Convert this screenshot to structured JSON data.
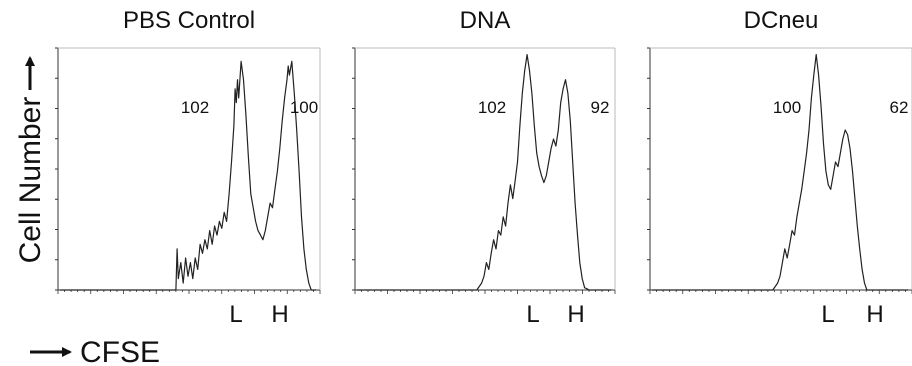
{
  "figure": {
    "ylabel": "Cell Number",
    "xlabel": "CFSE"
  },
  "chart_data": [
    {
      "type": "line",
      "title": "PBS Control",
      "peaks": [
        {
          "label": "L",
          "value": "102"
        },
        {
          "label": "H",
          "value": "100"
        }
      ],
      "series": [
        {
          "values": [
            [
              0,
              0
            ],
            [
              2,
              0
            ],
            [
              4,
              0
            ],
            [
              6,
              0
            ],
            [
              8,
              0
            ],
            [
              10,
              0
            ],
            [
              12,
              0
            ],
            [
              14,
              0
            ],
            [
              16,
              0
            ],
            [
              18,
              0
            ],
            [
              20,
              0
            ],
            [
              22,
              0
            ],
            [
              24,
              0
            ],
            [
              26,
              0
            ],
            [
              28,
              0
            ],
            [
              30,
              0
            ],
            [
              32,
              0
            ],
            [
              34,
              0
            ],
            [
              36,
              0
            ],
            [
              38,
              0
            ],
            [
              40,
              0
            ],
            [
              42,
              0
            ],
            [
              44,
              0
            ],
            [
              46,
              0
            ],
            [
              48,
              0
            ],
            [
              48.5,
              18
            ],
            [
              49,
              5
            ],
            [
              50,
              12
            ],
            [
              51,
              3
            ],
            [
              52,
              14
            ],
            [
              53,
              6
            ],
            [
              54,
              12
            ],
            [
              55,
              5
            ],
            [
              56,
              14
            ],
            [
              57,
              9
            ],
            [
              58,
              20
            ],
            [
              59,
              16
            ],
            [
              60,
              22
            ],
            [
              61,
              18
            ],
            [
              62,
              26
            ],
            [
              63,
              20
            ],
            [
              64,
              28
            ],
            [
              65,
              24
            ],
            [
              66,
              30
            ],
            [
              67,
              27
            ],
            [
              68,
              34
            ],
            [
              69,
              30
            ],
            [
              70,
              42
            ],
            [
              71,
              56
            ],
            [
              72,
              72
            ],
            [
              72.5,
              88
            ],
            [
              73,
              82
            ],
            [
              73.5,
              92
            ],
            [
              74,
              84
            ],
            [
              75,
              100
            ],
            [
              76,
              92
            ],
            [
              77,
              76
            ],
            [
              78,
              58
            ],
            [
              79,
              42
            ],
            [
              80,
              36
            ],
            [
              81,
              30
            ],
            [
              82,
              26
            ],
            [
              83,
              24
            ],
            [
              84,
              22
            ],
            [
              85,
              26
            ],
            [
              86,
              32
            ],
            [
              87,
              38
            ],
            [
              88,
              36
            ],
            [
              89,
              44
            ],
            [
              90,
              52
            ],
            [
              91,
              62
            ],
            [
              92,
              74
            ],
            [
              93,
              84
            ],
            [
              94,
              92
            ],
            [
              94.5,
              98
            ],
            [
              95,
              94
            ],
            [
              96,
              100
            ],
            [
              97,
              86
            ],
            [
              98,
              70
            ],
            [
              99,
              52
            ],
            [
              100,
              32
            ],
            [
              101,
              18
            ],
            [
              102,
              9
            ],
            [
              103,
              3
            ],
            [
              104,
              0
            ],
            [
              106,
              0
            ]
          ]
        }
      ]
    },
    {
      "type": "line",
      "title": "DNA",
      "peaks": [
        {
          "label": "L",
          "value": "102"
        },
        {
          "label": "H",
          "value": "92"
        }
      ],
      "series": [
        {
          "values": [
            [
              0,
              0
            ],
            [
              2,
              0
            ],
            [
              4,
              0
            ],
            [
              6,
              0
            ],
            [
              8,
              0
            ],
            [
              10,
              0
            ],
            [
              12,
              0
            ],
            [
              14,
              0
            ],
            [
              16,
              0
            ],
            [
              18,
              0
            ],
            [
              20,
              0
            ],
            [
              22,
              0
            ],
            [
              24,
              0
            ],
            [
              26,
              0
            ],
            [
              28,
              0
            ],
            [
              30,
              0
            ],
            [
              32,
              0
            ],
            [
              34,
              0
            ],
            [
              36,
              0
            ],
            [
              38,
              0
            ],
            [
              40,
              0
            ],
            [
              42,
              0
            ],
            [
              44,
              0
            ],
            [
              46,
              0
            ],
            [
              48,
              0
            ],
            [
              50,
              0
            ],
            [
              52,
              3
            ],
            [
              53,
              6
            ],
            [
              54,
              12
            ],
            [
              55,
              9
            ],
            [
              56,
              16
            ],
            [
              57,
              22
            ],
            [
              58,
              18
            ],
            [
              59,
              26
            ],
            [
              60,
              24
            ],
            [
              61,
              32
            ],
            [
              62,
              28
            ],
            [
              63,
              38
            ],
            [
              64,
              46
            ],
            [
              65,
              40
            ],
            [
              66,
              48
            ],
            [
              67,
              56
            ],
            [
              68,
              72
            ],
            [
              69,
              86
            ],
            [
              70,
              96
            ],
            [
              71,
              103
            ],
            [
              72,
              96
            ],
            [
              73,
              86
            ],
            [
              74,
              72
            ],
            [
              75,
              60
            ],
            [
              76,
              54
            ],
            [
              77,
              50
            ],
            [
              78,
              47
            ],
            [
              79,
              50
            ],
            [
              80,
              56
            ],
            [
              81,
              62
            ],
            [
              82,
              66
            ],
            [
              83,
              63
            ],
            [
              84,
              70
            ],
            [
              85,
              82
            ],
            [
              86,
              88
            ],
            [
              87,
              92
            ],
            [
              88,
              86
            ],
            [
              89,
              74
            ],
            [
              90,
              56
            ],
            [
              91,
              38
            ],
            [
              92,
              24
            ],
            [
              93,
              12
            ],
            [
              94,
              5
            ],
            [
              95,
              1
            ],
            [
              97,
              0
            ],
            [
              99,
              0
            ],
            [
              101,
              0
            ],
            [
              103,
              0
            ],
            [
              106,
              0
            ]
          ]
        }
      ]
    },
    {
      "type": "line",
      "title": "DCneu",
      "peaks": [
        {
          "label": "L",
          "value": "100"
        },
        {
          "label": "H",
          "value": "62"
        }
      ],
      "series": [
        {
          "values": [
            [
              0,
              0
            ],
            [
              2,
              0
            ],
            [
              4,
              0
            ],
            [
              6,
              0
            ],
            [
              8,
              0
            ],
            [
              10,
              0
            ],
            [
              12,
              0
            ],
            [
              14,
              0
            ],
            [
              16,
              0
            ],
            [
              18,
              0
            ],
            [
              20,
              0
            ],
            [
              22,
              0
            ],
            [
              24,
              0
            ],
            [
              26,
              0
            ],
            [
              28,
              0
            ],
            [
              30,
              0
            ],
            [
              32,
              0
            ],
            [
              34,
              0
            ],
            [
              36,
              0
            ],
            [
              38,
              0
            ],
            [
              40,
              0
            ],
            [
              42,
              0
            ],
            [
              44,
              0
            ],
            [
              46,
              0
            ],
            [
              48,
              0
            ],
            [
              50,
              0
            ],
            [
              52,
              3
            ],
            [
              53,
              6
            ],
            [
              54,
              12
            ],
            [
              55,
              18
            ],
            [
              56,
              14
            ],
            [
              57,
              20
            ],
            [
              58,
              26
            ],
            [
              59,
              24
            ],
            [
              60,
              32
            ],
            [
              61,
              38
            ],
            [
              62,
              44
            ],
            [
              63,
              52
            ],
            [
              64,
              60
            ],
            [
              65,
              70
            ],
            [
              66,
              84
            ],
            [
              67,
              94
            ],
            [
              68,
              103
            ],
            [
              69,
              94
            ],
            [
              70,
              80
            ],
            [
              71,
              64
            ],
            [
              72,
              52
            ],
            [
              73,
              46
            ],
            [
              74,
              44
            ],
            [
              75,
              50
            ],
            [
              76,
              56
            ],
            [
              77,
              54
            ],
            [
              78,
              60
            ],
            [
              79,
              66
            ],
            [
              80,
              70
            ],
            [
              81,
              68
            ],
            [
              82,
              62
            ],
            [
              83,
              52
            ],
            [
              84,
              40
            ],
            [
              85,
              28
            ],
            [
              86,
              18
            ],
            [
              87,
              9
            ],
            [
              88,
              3
            ],
            [
              89,
              0
            ],
            [
              91,
              0
            ],
            [
              94,
              0
            ],
            [
              97,
              0
            ],
            [
              100,
              0
            ],
            [
              103,
              0
            ],
            [
              106,
              0
            ]
          ]
        }
      ]
    }
  ]
}
